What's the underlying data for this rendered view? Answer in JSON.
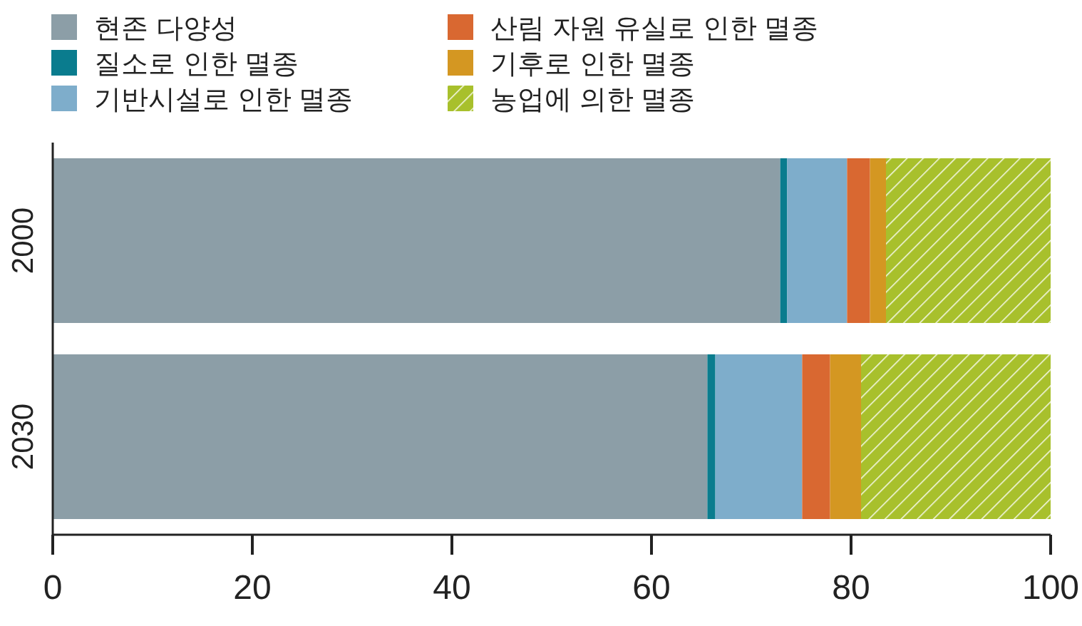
{
  "chart_data": {
    "type": "bar",
    "orientation": "horizontal",
    "stacked": true,
    "categories": [
      "2000",
      "2030"
    ],
    "series": [
      {
        "name": "현존 다양성",
        "color": "#8c9ea7",
        "values": [
          72.9,
          65.6
        ]
      },
      {
        "name": "질소로 인한 멸종",
        "color": "#0a7c8e",
        "values": [
          0.7,
          0.8
        ]
      },
      {
        "name": "기반시설로 인한 멸종",
        "color": "#7eadcb",
        "values": [
          6.0,
          8.7
        ]
      },
      {
        "name": "산림 자원 유실로 인한 멸종",
        "color": "#d96831",
        "values": [
          2.3,
          2.8
        ]
      },
      {
        "name": "기후로 인한 멸종",
        "color": "#d49722",
        "values": [
          1.6,
          3.1
        ]
      },
      {
        "name": "농업에 의한 멸종",
        "color": "#a8c02c",
        "values": [
          16.5,
          19.0
        ]
      }
    ],
    "xlim": [
      0,
      100
    ],
    "xticks": [
      0,
      20,
      40,
      60,
      80,
      100
    ],
    "grid": false,
    "legend": "top"
  }
}
